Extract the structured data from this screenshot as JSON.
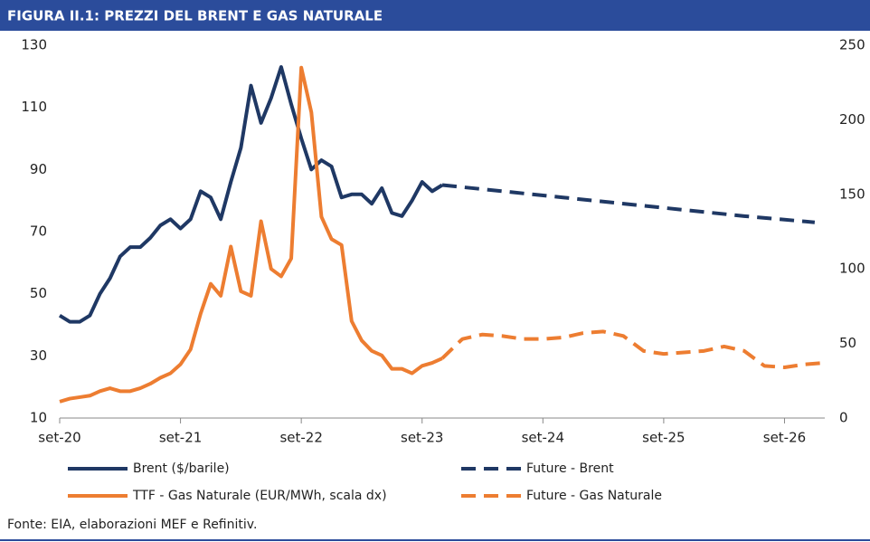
{
  "chart_data": {
    "type": "line",
    "title": "FIGURA II.1: PREZZI DEL BRENT E GAS NATURALE",
    "source": "Fonte: EIA, elaborazioni MEF e Refinitiv.",
    "xlim": [
      0,
      76
    ],
    "xticks": [
      {
        "value": 0,
        "label": "set-20"
      },
      {
        "value": 12,
        "label": "set-21"
      },
      {
        "value": 24,
        "label": "set-22"
      },
      {
        "value": 36,
        "label": "set-23"
      },
      {
        "value": 48,
        "label": "set-24"
      },
      {
        "value": 60,
        "label": "set-25"
      },
      {
        "value": 72,
        "label": "set-26"
      }
    ],
    "ylim": [
      10,
      130
    ],
    "yticks": [
      10,
      30,
      50,
      70,
      90,
      110,
      130
    ],
    "y2lim": [
      0,
      250
    ],
    "y2ticks": [
      0,
      50,
      100,
      150,
      200,
      250
    ],
    "series": [
      {
        "name": "Brent ($/barile)",
        "color": "#1f3864",
        "style": "solid",
        "x": [
          0,
          1,
          2,
          3,
          4,
          5,
          6,
          7,
          8,
          9,
          10,
          11,
          12,
          13,
          14,
          15,
          16,
          17,
          18,
          19,
          20,
          21,
          22,
          23,
          24,
          25,
          26,
          27,
          28,
          29,
          30,
          31,
          32,
          33,
          34,
          35,
          36,
          37,
          38
        ],
        "values": [
          43,
          41,
          41,
          43,
          50,
          55,
          62,
          65,
          65,
          68,
          72,
          74,
          71,
          74,
          83,
          81,
          74,
          86,
          97,
          117,
          105,
          113,
          123,
          111,
          100,
          90,
          93,
          91,
          81,
          82,
          82,
          79,
          84,
          76,
          75,
          80,
          86,
          83,
          85
        ]
      },
      {
        "name": "Future - Brent",
        "color": "#1f3864",
        "style": "dashed",
        "x": [
          38,
          44,
          50,
          56,
          62,
          68,
          75
        ],
        "values": [
          85,
          83,
          81,
          79,
          77,
          75,
          73
        ]
      },
      {
        "name": "TTF - Gas Naturale (EUR/MWh, scala dx)",
        "color": "#ed7d31",
        "style": "solid",
        "axis": "y2",
        "x": [
          0,
          1,
          2,
          3,
          4,
          5,
          6,
          7,
          8,
          9,
          10,
          11,
          12,
          13,
          14,
          15,
          16,
          17,
          18,
          19,
          20,
          21,
          22,
          23,
          24,
          25,
          26,
          27,
          28,
          29,
          30,
          31,
          32,
          33,
          34,
          35,
          36,
          37,
          38
        ],
        "values": [
          11,
          13,
          14,
          15,
          18,
          20,
          18,
          18,
          20,
          23,
          27,
          30,
          36,
          46,
          70,
          90,
          82,
          115,
          85,
          82,
          132,
          100,
          95,
          107,
          235,
          205,
          135,
          120,
          116,
          65,
          52,
          45,
          42,
          33,
          33,
          30,
          35,
          37,
          40
        ]
      },
      {
        "name": "Future - Gas Naturale",
        "color": "#ed7d31",
        "style": "dashed",
        "axis": "y2",
        "x": [
          38,
          40,
          42,
          44,
          46,
          48,
          50,
          52,
          54,
          56,
          58,
          60,
          62,
          64,
          66,
          68,
          70,
          72,
          74,
          76
        ],
        "values": [
          40,
          53,
          56,
          55,
          53,
          53,
          54,
          57,
          58,
          55,
          45,
          43,
          44,
          45,
          48,
          45,
          35,
          34,
          36,
          37
        ]
      }
    ]
  }
}
